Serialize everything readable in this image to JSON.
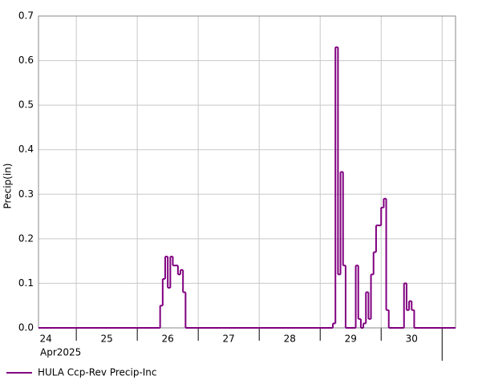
{
  "chart_data": {
    "type": "step",
    "ylabel": "Precip(in)",
    "xlabel": "Apr2025",
    "xlim": [
      24.38,
      31.22
    ],
    "xticks": [
      {
        "value": 24.5,
        "label": "24"
      },
      {
        "value": 25.5,
        "label": "25"
      },
      {
        "value": 26.5,
        "label": "26"
      },
      {
        "value": 27.5,
        "label": "27"
      },
      {
        "value": 28.5,
        "label": "28"
      },
      {
        "value": 29.5,
        "label": "29"
      },
      {
        "value": 30.5,
        "label": "30"
      }
    ],
    "xgrid": [
      25,
      26,
      27,
      28,
      29,
      30,
      31
    ],
    "ylim": [
      0,
      0.7
    ],
    "yticks": [
      {
        "value": 0,
        "label": "0.0"
      },
      0.1,
      0.2,
      0.3,
      0.4,
      0.5,
      0.6,
      0.7
    ],
    "grid": true,
    "series": [
      {
        "name": "HULA Ccp-Rev Precip-Inc",
        "color": "#800080",
        "x": [
          24.38,
          26.375,
          26.417,
          26.458,
          26.5,
          26.542,
          26.583,
          26.667,
          26.708,
          26.75,
          26.792,
          29.208,
          29.25,
          29.292,
          29.333,
          29.375,
          29.417,
          29.583,
          29.625,
          29.667,
          29.708,
          29.75,
          29.792,
          29.833,
          29.875,
          29.917,
          30,
          30.042,
          30.083,
          30.125,
          30.375,
          30.417,
          30.458,
          30.5,
          30.542
        ],
        "values": [
          0,
          0.05,
          0.11,
          0.16,
          0.09,
          0.16,
          0.14,
          0.12,
          0.13,
          0.08,
          0,
          0.01,
          0.63,
          0.12,
          0.35,
          0.14,
          0,
          0.14,
          0.02,
          0,
          0.01,
          0.08,
          0.02,
          0.12,
          0.17,
          0.23,
          0.27,
          0.29,
          0.04,
          0,
          0.1,
          0.04,
          0.06,
          0.04,
          0
        ]
      }
    ]
  }
}
